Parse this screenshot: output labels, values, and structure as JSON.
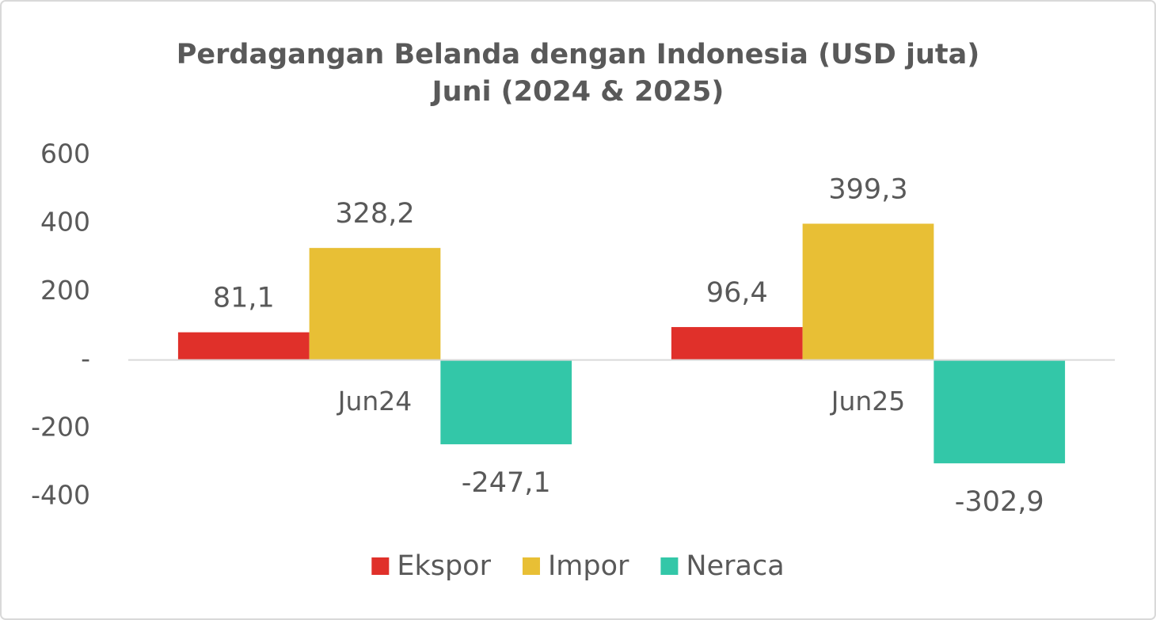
{
  "chart_data": {
    "type": "bar",
    "title": "Perdagangan Belanda dengan Indonesia (USD juta)",
    "subtitle": "Juni (2024 & 2025)",
    "categories": [
      "Jun24",
      "Jun25"
    ],
    "series": [
      {
        "name": "Ekspor",
        "color": "#e0302a",
        "values": [
          81.1,
          96.4
        ],
        "value_labels": [
          "81,1",
          "96,4"
        ]
      },
      {
        "name": "Impor",
        "color": "#e8bf35",
        "values": [
          328.2,
          399.3
        ],
        "value_labels": [
          "328,2",
          "399,3"
        ]
      },
      {
        "name": "Neraca",
        "color": "#33c7a8",
        "values": [
          -247.1,
          -302.9
        ],
        "value_labels": [
          "-247,1",
          "-302,9"
        ]
      }
    ],
    "ylim": [
      -400,
      600
    ],
    "yticks": [
      600,
      400,
      200,
      {
        "value": 0,
        "label": "-"
      },
      -200,
      -400
    ],
    "grid": false,
    "legend": "bottom"
  }
}
